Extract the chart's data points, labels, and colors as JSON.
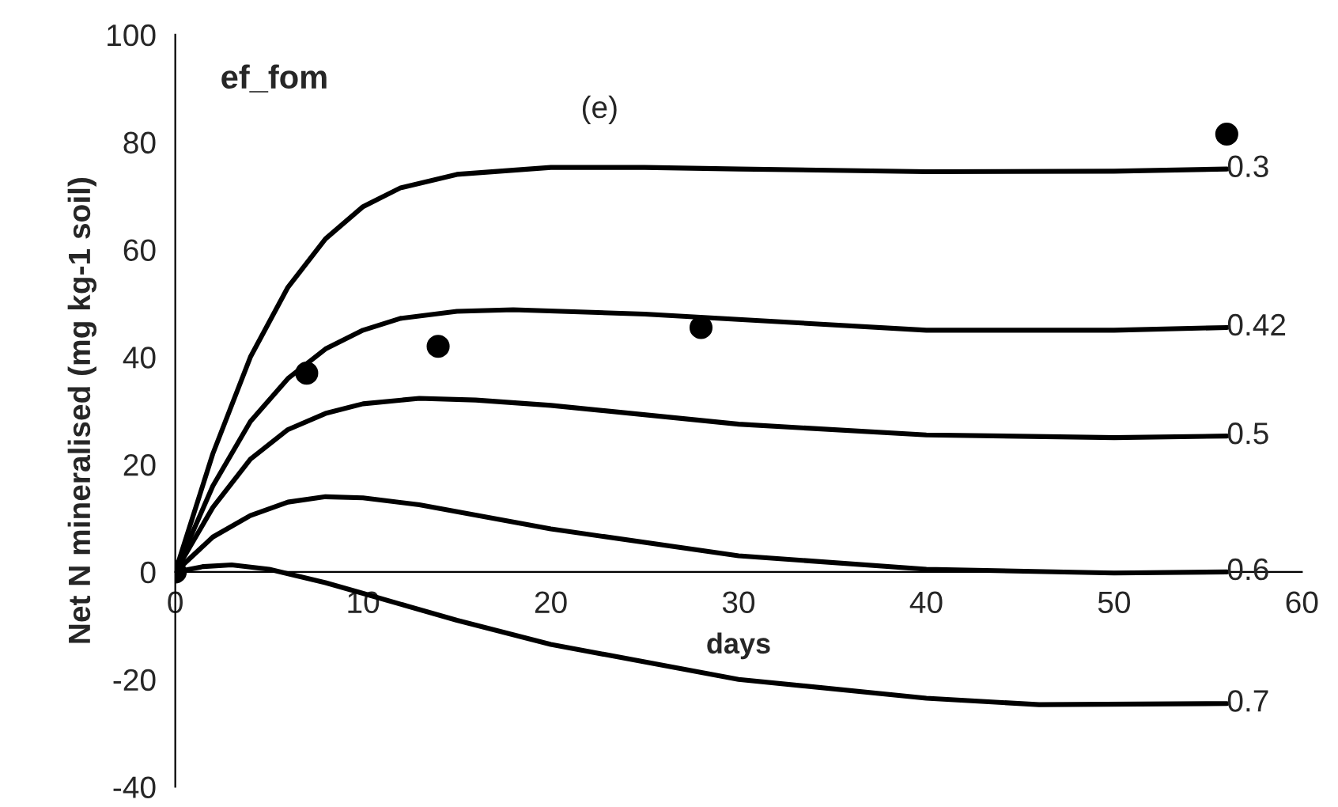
{
  "chart_data": {
    "type": "line",
    "ylabel": "Net N mineralised (mg kg-1 soil)",
    "xlabel": "days",
    "annotations": [
      "ef_fom",
      "(e)"
    ],
    "xlim": [
      0,
      60
    ],
    "xticks": [
      0,
      10,
      20,
      30,
      40,
      50,
      60
    ],
    "ylim": [
      -40,
      100
    ],
    "yticks": [
      -40,
      -20,
      0,
      20,
      40,
      60,
      80,
      100
    ],
    "grid": false,
    "legend": false,
    "line_style": "solid",
    "series": [
      {
        "name": "0.3",
        "color": "#000000",
        "marker": "none",
        "x": [
          0,
          2,
          4,
          6,
          8,
          10,
          12,
          15,
          20,
          25,
          30,
          40,
          50,
          56
        ],
        "values": [
          0,
          22,
          40,
          53,
          62,
          68,
          71.5,
          74,
          75.3,
          75.3,
          75,
          74.5,
          74.6,
          75
        ]
      },
      {
        "name": "0.42",
        "color": "#000000",
        "marker": "none",
        "x": [
          0,
          2,
          4,
          6,
          8,
          10,
          12,
          15,
          18,
          25,
          30,
          40,
          50,
          56
        ],
        "values": [
          0,
          16,
          28,
          36,
          41.5,
          45,
          47.2,
          48.5,
          48.8,
          48,
          47,
          45,
          45,
          45.5
        ]
      },
      {
        "name": "0.5",
        "color": "#000000",
        "marker": "none",
        "x": [
          0,
          2,
          4,
          6,
          8,
          10,
          13,
          16,
          20,
          30,
          40,
          50,
          56
        ],
        "values": [
          0,
          12,
          21,
          26.5,
          29.5,
          31.3,
          32.3,
          32,
          31,
          27.5,
          25.5,
          25,
          25.3
        ]
      },
      {
        "name": "0.6",
        "color": "#000000",
        "marker": "none",
        "x": [
          0,
          2,
          4,
          6,
          8,
          10,
          13,
          20,
          30,
          40,
          50,
          56
        ],
        "values": [
          0,
          6.5,
          10.5,
          13,
          14,
          13.8,
          12.5,
          8,
          3,
          0.5,
          -0.2,
          0
        ]
      },
      {
        "name": "0.7",
        "color": "#000000",
        "marker": "none",
        "x": [
          0,
          1.5,
          3,
          5,
          8,
          10,
          15,
          20,
          30,
          40,
          46,
          56
        ],
        "values": [
          0,
          1,
          1.3,
          0.5,
          -2,
          -4,
          -9,
          -13.5,
          -20,
          -23.5,
          -24.7,
          -24.5
        ]
      },
      {
        "type": "scatter",
        "color": "#000000",
        "marker": "circle",
        "x": [
          0,
          7,
          14,
          28,
          56
        ],
        "values": [
          0,
          37,
          42,
          45.5,
          81.5
        ]
      }
    ]
  }
}
